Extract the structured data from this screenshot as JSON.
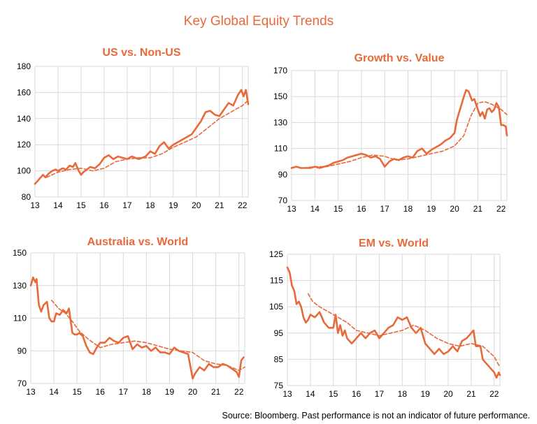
{
  "title": "Key Global Equity Trends",
  "source": "Source: Bloomberg.  Past performance  is not an indicator of future performance.",
  "colors": {
    "line": "#E8693A",
    "grid": "#D9D9D9",
    "title": "#E8693A"
  },
  "chart_data": [
    {
      "type": "line",
      "title": "US vs. Non-US",
      "xticks": [
        "13",
        "14",
        "15",
        "16",
        "17",
        "18",
        "19",
        "20",
        "21",
        "22"
      ],
      "xlim": [
        13,
        22.25
      ],
      "yticks": [
        80,
        100,
        120,
        140,
        160,
        180
      ],
      "ylim": [
        80,
        180
      ],
      "grid": true,
      "series": [
        {
          "style": "solid",
          "x": [
            13.0,
            13.1,
            13.2,
            13.35,
            13.45,
            13.6,
            13.75,
            13.9,
            14.0,
            14.2,
            14.35,
            14.5,
            14.65,
            14.75,
            14.9,
            15.0,
            15.1,
            15.25,
            15.4,
            15.6,
            15.8,
            16.0,
            16.2,
            16.4,
            16.6,
            16.8,
            17.0,
            17.2,
            17.5,
            17.8,
            18.0,
            18.2,
            18.4,
            18.6,
            18.8,
            19.0,
            19.2,
            19.4,
            19.6,
            19.8,
            20.0,
            20.2,
            20.4,
            20.6,
            20.8,
            21.0,
            21.2,
            21.4,
            21.6,
            21.8,
            21.95,
            22.05,
            22.15,
            22.25
          ],
          "values": [
            90,
            92,
            94,
            97,
            95,
            98,
            100,
            101,
            100,
            102,
            101,
            104,
            103,
            106,
            100,
            97,
            99,
            101,
            103,
            102,
            105,
            110,
            112,
            109,
            111,
            110,
            109,
            111,
            109,
            111,
            115,
            113,
            119,
            122,
            117,
            120,
            122,
            124,
            126,
            128,
            133,
            138,
            145,
            146,
            143,
            142,
            147,
            152,
            150,
            158,
            162,
            157,
            162,
            151
          ]
        },
        {
          "style": "dashed",
          "x": [
            13.5,
            14.0,
            14.5,
            15.0,
            15.5,
            16.0,
            16.5,
            17.0,
            17.5,
            18.0,
            18.5,
            19.0,
            19.5,
            20.0,
            20.5,
            21.0,
            21.5,
            22.0,
            22.25
          ],
          "values": [
            95,
            99,
            101,
            102,
            100,
            102,
            107,
            109,
            110,
            110,
            113,
            118,
            122,
            126,
            133,
            140,
            145,
            150,
            154
          ]
        }
      ]
    },
    {
      "type": "line",
      "title": "Growth vs. Value",
      "xticks": [
        "13",
        "14",
        "15",
        "16",
        "17",
        "18",
        "19",
        "20",
        "21",
        "22"
      ],
      "xlim": [
        13,
        22.25
      ],
      "yticks": [
        70,
        90,
        110,
        130,
        150,
        170
      ],
      "ylim": [
        70,
        170
      ],
      "grid": true,
      "series": [
        {
          "style": "solid",
          "x": [
            13.0,
            13.2,
            13.4,
            13.6,
            13.8,
            14.0,
            14.2,
            14.4,
            14.6,
            14.8,
            15.0,
            15.2,
            15.4,
            15.6,
            15.8,
            16.0,
            16.2,
            16.4,
            16.6,
            16.8,
            17.0,
            17.2,
            17.4,
            17.6,
            17.8,
            18.0,
            18.2,
            18.4,
            18.6,
            18.8,
            19.0,
            19.2,
            19.4,
            19.6,
            19.8,
            20.0,
            20.1,
            20.2,
            20.3,
            20.4,
            20.5,
            20.6,
            20.75,
            20.85,
            21.0,
            21.1,
            21.2,
            21.3,
            21.4,
            21.5,
            21.6,
            21.7,
            21.8,
            21.9,
            22.0,
            22.1,
            22.2,
            22.25
          ],
          "values": [
            95,
            96,
            95,
            95,
            95,
            96,
            95,
            96,
            97,
            99,
            100,
            101,
            103,
            104,
            105,
            106,
            105,
            103,
            104,
            102,
            96,
            100,
            102,
            101,
            103,
            104,
            103,
            108,
            110,
            106,
            109,
            111,
            113,
            116,
            118,
            122,
            132,
            138,
            144,
            150,
            155,
            154,
            147,
            148,
            140,
            135,
            138,
            133,
            140,
            141,
            138,
            140,
            145,
            142,
            128,
            128,
            127,
            120
          ]
        },
        {
          "style": "dashed",
          "x": [
            13.5,
            14.0,
            14.5,
            15.0,
            15.5,
            16.0,
            16.5,
            17.0,
            17.5,
            18.0,
            18.5,
            19.0,
            19.5,
            20.0,
            20.4,
            20.7,
            21.0,
            21.3,
            21.6,
            22.0,
            22.25
          ],
          "values": [
            95,
            96,
            96,
            98,
            100,
            103,
            105,
            104,
            101,
            102,
            104,
            106,
            108,
            112,
            120,
            135,
            145,
            146,
            144,
            140,
            136
          ]
        }
      ]
    },
    {
      "type": "line",
      "title": "Australia vs. World",
      "xticks": [
        "13",
        "14",
        "15",
        "16",
        "17",
        "18",
        "19",
        "20",
        "21",
        "22"
      ],
      "xlim": [
        13,
        22.25
      ],
      "yticks": [
        70,
        90,
        110,
        130,
        150
      ],
      "ylim": [
        70,
        150
      ],
      "grid": true,
      "series": [
        {
          "style": "solid",
          "x": [
            13.0,
            13.1,
            13.2,
            13.25,
            13.35,
            13.45,
            13.55,
            13.7,
            13.8,
            13.9,
            14.0,
            14.1,
            14.25,
            14.4,
            14.55,
            14.65,
            14.8,
            14.9,
            15.0,
            15.1,
            15.25,
            15.4,
            15.55,
            15.7,
            15.85,
            16.0,
            16.2,
            16.4,
            16.6,
            16.8,
            17.0,
            17.2,
            17.4,
            17.6,
            17.8,
            18.0,
            18.2,
            18.4,
            18.6,
            18.8,
            19.0,
            19.2,
            19.4,
            19.6,
            19.8,
            20.0,
            20.1,
            20.3,
            20.5,
            20.7,
            20.9,
            21.1,
            21.3,
            21.5,
            21.7,
            21.9,
            22.0,
            22.1,
            22.2
          ],
          "values": [
            130,
            135,
            132,
            134,
            118,
            114,
            118,
            120,
            110,
            108,
            108,
            113,
            112,
            115,
            113,
            116,
            101,
            100,
            100,
            101,
            99,
            93,
            89,
            88,
            92,
            95,
            95,
            98,
            96,
            95,
            98,
            99,
            91,
            94,
            92,
            93,
            90,
            92,
            89,
            89,
            88,
            92,
            90,
            89,
            88,
            73,
            76,
            80,
            78,
            82,
            80,
            80,
            82,
            81,
            79,
            77,
            74,
            84,
            86
          ]
        },
        {
          "style": "dashed",
          "x": [
            13.9,
            14.2,
            14.5,
            14.8,
            15.1,
            15.5,
            16.0,
            16.5,
            17.0,
            17.5,
            18.0,
            18.5,
            19.0,
            19.5,
            20.0,
            20.5,
            21.0,
            21.5,
            22.0,
            22.25
          ],
          "values": [
            121,
            116,
            113,
            108,
            102,
            97,
            92,
            94,
            95,
            96,
            95,
            93,
            91,
            90,
            89,
            84,
            82,
            81,
            78,
            80
          ]
        }
      ]
    },
    {
      "type": "line",
      "title": "EM vs. World",
      "xticks": [
        "13",
        "14",
        "15",
        "16",
        "17",
        "18",
        "19",
        "20",
        "21",
        "22"
      ],
      "xlim": [
        13,
        22.25
      ],
      "yticks": [
        75,
        85,
        95,
        105,
        115,
        125
      ],
      "ylim": [
        75,
        125
      ],
      "grid": true,
      "series": [
        {
          "style": "solid",
          "x": [
            13.0,
            13.1,
            13.2,
            13.3,
            13.4,
            13.5,
            13.6,
            13.7,
            13.8,
            13.9,
            14.0,
            14.2,
            14.4,
            14.6,
            14.8,
            15.0,
            15.1,
            15.2,
            15.3,
            15.4,
            15.5,
            15.6,
            15.8,
            16.0,
            16.2,
            16.4,
            16.6,
            16.8,
            17.0,
            17.2,
            17.4,
            17.6,
            17.8,
            18.0,
            18.2,
            18.4,
            18.6,
            18.8,
            19.0,
            19.2,
            19.4,
            19.6,
            19.8,
            20.0,
            20.2,
            20.4,
            20.6,
            20.8,
            21.0,
            21.1,
            21.2,
            21.4,
            21.5,
            21.6,
            21.8,
            22.0,
            22.1,
            22.2,
            22.25
          ],
          "values": [
            120,
            118,
            113,
            111,
            106,
            107,
            105,
            101,
            99,
            100,
            102,
            101,
            103,
            99,
            97,
            97,
            102,
            95,
            98,
            94,
            96,
            93,
            91,
            93,
            95,
            93,
            95,
            96,
            93,
            95,
            97,
            98,
            101,
            100,
            101,
            97,
            95,
            97,
            91,
            89,
            87,
            89,
            87,
            88,
            90,
            88,
            92,
            93,
            95,
            96,
            90,
            90,
            85,
            84,
            82,
            80,
            78,
            80,
            79
          ]
        },
        {
          "style": "dashed",
          "x": [
            13.9,
            14.1,
            14.4,
            14.8,
            15.2,
            15.6,
            16.0,
            16.5,
            17.0,
            17.5,
            18.0,
            18.5,
            19.0,
            19.5,
            20.0,
            20.5,
            21.0,
            21.5,
            22.0,
            22.25
          ],
          "values": [
            110,
            107,
            105,
            103,
            101,
            99,
            96,
            95,
            94,
            95,
            96,
            98,
            96,
            93,
            91,
            90,
            91,
            90,
            86,
            82
          ]
        }
      ]
    }
  ]
}
